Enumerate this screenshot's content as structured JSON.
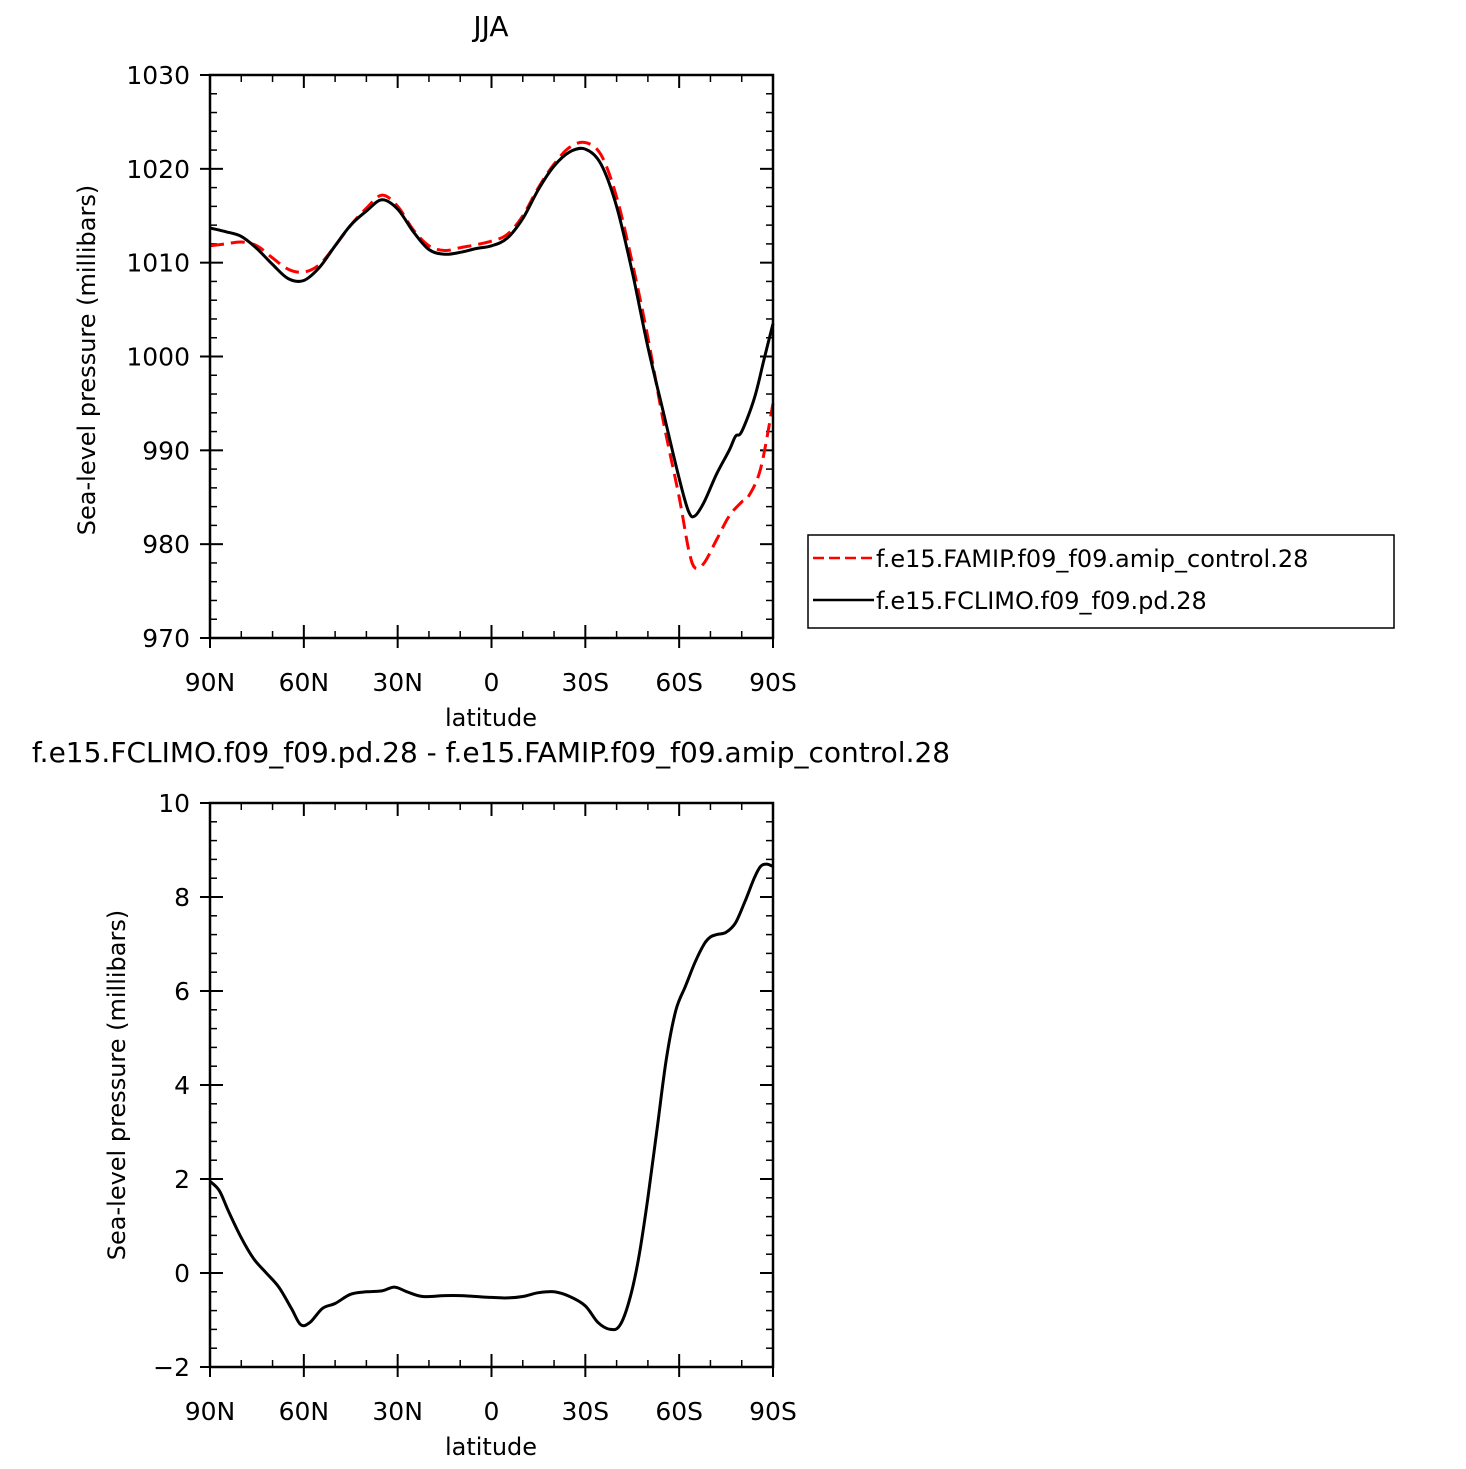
{
  "chart_data": [
    {
      "type": "line",
      "title": "JJA",
      "xlabel": "latitude",
      "ylabel": "Sea-level pressure (millibars)",
      "xlim": [
        90,
        -90
      ],
      "ylim": [
        970,
        1030
      ],
      "yticks": [
        970,
        980,
        990,
        1000,
        1010,
        1020,
        1030
      ],
      "xticks": [
        90,
        60,
        30,
        0,
        -30,
        -60,
        -90
      ],
      "xtick_labels": [
        "90N",
        "60N",
        "30N",
        "0",
        "30S",
        "60S",
        "90S"
      ],
      "grid": false,
      "legend": "right",
      "series": [
        {
          "name": "f.e15.FAMIP.f09_f09.amip_control.28",
          "color": "#ff0000",
          "dash": true,
          "points": [
            [
              90,
              1011.8
            ],
            [
              85,
              1012
            ],
            [
              80,
              1012.2
            ],
            [
              75,
              1011.8
            ],
            [
              70,
              1010.5
            ],
            [
              65,
              1009.3
            ],
            [
              60,
              1009
            ],
            [
              55,
              1009.8
            ],
            [
              50,
              1011.8
            ],
            [
              45,
              1014
            ],
            [
              40,
              1015.8
            ],
            [
              35,
              1017.2
            ],
            [
              30,
              1016
            ],
            [
              25,
              1013.5
            ],
            [
              20,
              1011.8
            ],
            [
              15,
              1011.3
            ],
            [
              10,
              1011.6
            ],
            [
              5,
              1011.9
            ],
            [
              0,
              1012.3
            ],
            [
              -5,
              1013
            ],
            [
              -10,
              1015
            ],
            [
              -15,
              1018
            ],
            [
              -20,
              1020.5
            ],
            [
              -25,
              1022.3
            ],
            [
              -30,
              1022.8
            ],
            [
              -35,
              1021.5
            ],
            [
              -40,
              1017
            ],
            [
              -45,
              1010
            ],
            [
              -50,
              1002
            ],
            [
              -55,
              993
            ],
            [
              -60,
              985
            ],
            [
              -63,
              979.5
            ],
            [
              -65,
              977.5
            ],
            [
              -68,
              978
            ],
            [
              -72,
              980.5
            ],
            [
              -76,
              983
            ],
            [
              -80,
              984.5
            ],
            [
              -82,
              985
            ],
            [
              -86,
              988
            ],
            [
              -90,
              995
            ]
          ]
        },
        {
          "name": "f.e15.FCLIMO.f09_f09.pd.28",
          "color": "#000000",
          "dash": false,
          "points": [
            [
              90,
              1013.7
            ],
            [
              85,
              1013.3
            ],
            [
              80,
              1012.8
            ],
            [
              75,
              1011.5
            ],
            [
              70,
              1009.8
            ],
            [
              65,
              1008.3
            ],
            [
              60,
              1008.1
            ],
            [
              55,
              1009.5
            ],
            [
              50,
              1011.8
            ],
            [
              45,
              1014
            ],
            [
              40,
              1015.5
            ],
            [
              35,
              1016.7
            ],
            [
              30,
              1015.7
            ],
            [
              25,
              1013.3
            ],
            [
              20,
              1011.4
            ],
            [
              15,
              1010.9
            ],
            [
              10,
              1011.1
            ],
            [
              5,
              1011.5
            ],
            [
              0,
              1011.8
            ],
            [
              -5,
              1012.6
            ],
            [
              -10,
              1014.7
            ],
            [
              -15,
              1017.8
            ],
            [
              -20,
              1020.3
            ],
            [
              -25,
              1021.8
            ],
            [
              -30,
              1022.1
            ],
            [
              -35,
              1020.5
            ],
            [
              -40,
              1016
            ],
            [
              -45,
              1009
            ],
            [
              -50,
              1001
            ],
            [
              -55,
              994
            ],
            [
              -60,
              987
            ],
            [
              -63,
              983.5
            ],
            [
              -65,
              983
            ],
            [
              -68,
              984.5
            ],
            [
              -72,
              987.5
            ],
            [
              -76,
              990
            ],
            [
              -78,
              991.5
            ],
            [
              -80,
              992
            ],
            [
              -84,
              995.5
            ],
            [
              -87,
              999.5
            ],
            [
              -90,
              1003.5
            ]
          ]
        }
      ]
    },
    {
      "type": "line",
      "title": "f.e15.FCLIMO.f09_f09.pd.28 - f.e15.FAMIP.f09_f09.amip_control.28",
      "xlabel": "latitude",
      "ylabel": "Sea-level pressure (millibars)",
      "xlim": [
        90,
        -90
      ],
      "ylim": [
        -2,
        10
      ],
      "yticks": [
        -2,
        0,
        2,
        4,
        6,
        8,
        10
      ],
      "ytick_labels": [
        "−2",
        "0",
        "2",
        "4",
        "6",
        "8",
        "10"
      ],
      "xticks": [
        90,
        60,
        30,
        0,
        -30,
        -60,
        -90
      ],
      "xtick_labels": [
        "90N",
        "60N",
        "30N",
        "0",
        "30S",
        "60S",
        "90S"
      ],
      "grid": false,
      "series": [
        {
          "color": "#000000",
          "dash": false,
          "points": [
            [
              90,
              1.95
            ],
            [
              87,
              1.75
            ],
            [
              84,
              1.3
            ],
            [
              80,
              0.75
            ],
            [
              76,
              0.3
            ],
            [
              72,
              0
            ],
            [
              68,
              -0.3
            ],
            [
              64,
              -0.75
            ],
            [
              61,
              -1.1
            ],
            [
              58,
              -1.05
            ],
            [
              54,
              -0.75
            ],
            [
              50,
              -0.65
            ],
            [
              45,
              -0.45
            ],
            [
              40,
              -0.4
            ],
            [
              35,
              -0.38
            ],
            [
              31,
              -0.3
            ],
            [
              27,
              -0.4
            ],
            [
              22,
              -0.5
            ],
            [
              15,
              -0.48
            ],
            [
              10,
              -0.48
            ],
            [
              5,
              -0.5
            ],
            [
              0,
              -0.52
            ],
            [
              -5,
              -0.53
            ],
            [
              -10,
              -0.5
            ],
            [
              -15,
              -0.42
            ],
            [
              -20,
              -0.4
            ],
            [
              -25,
              -0.5
            ],
            [
              -30,
              -0.7
            ],
            [
              -34,
              -1.05
            ],
            [
              -38,
              -1.2
            ],
            [
              -41,
              -1.12
            ],
            [
              -44,
              -0.6
            ],
            [
              -47,
              0.3
            ],
            [
              -50,
              1.6
            ],
            [
              -53,
              3.1
            ],
            [
              -56,
              4.6
            ],
            [
              -59,
              5.6
            ],
            [
              -62,
              6.1
            ],
            [
              -65,
              6.6
            ],
            [
              -68,
              7
            ],
            [
              -70,
              7.15
            ],
            [
              -72,
              7.2
            ],
            [
              -75,
              7.25
            ],
            [
              -78,
              7.45
            ],
            [
              -81,
              7.9
            ],
            [
              -84,
              8.4
            ],
            [
              -86,
              8.65
            ],
            [
              -88,
              8.7
            ],
            [
              -90,
              8.65
            ]
          ]
        }
      ]
    }
  ]
}
